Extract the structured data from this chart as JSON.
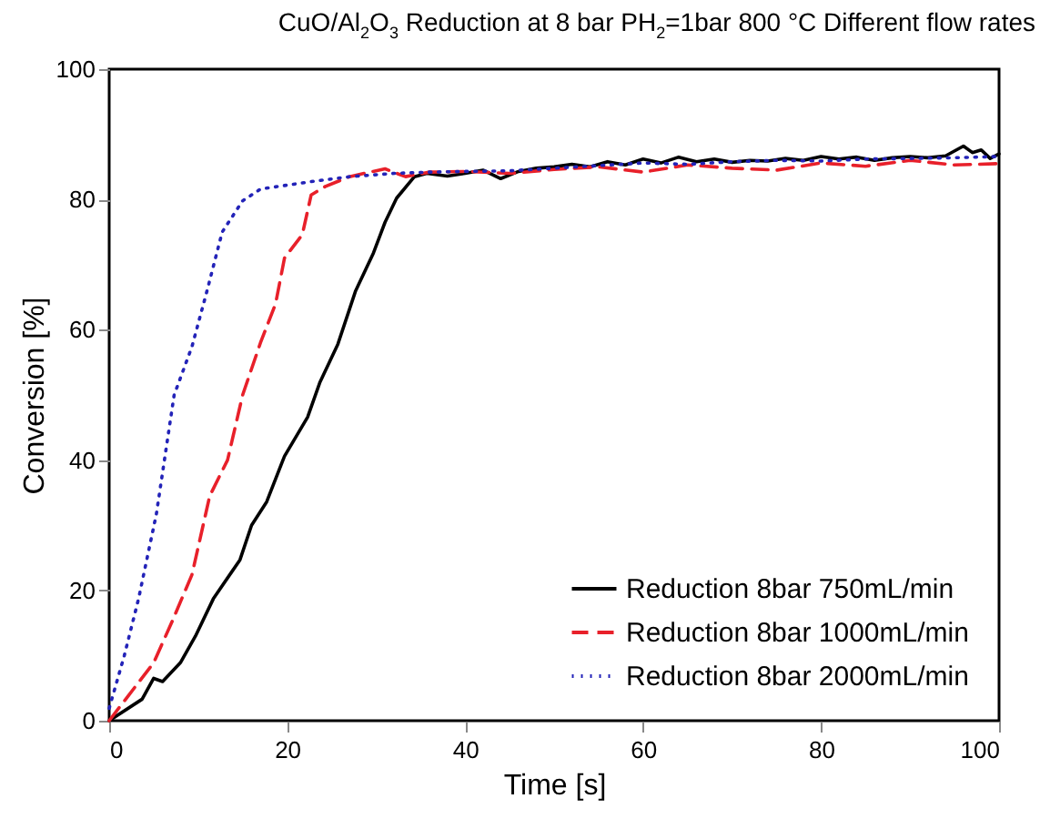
{
  "chart_data": {
    "type": "line",
    "title": "CuO/Al$_{2}$O$_{3}$ Reduction at 8 bar PH$_{2}$=1bar 800 °C Different flow rates",
    "xlabel": "Time [s]",
    "ylabel": "Conversion [%]",
    "xlim": [
      0,
      100
    ],
    "ylim": [
      0,
      100
    ],
    "xticks": [
      0,
      20,
      40,
      60,
      80,
      100
    ],
    "yticks": [
      0,
      20,
      40,
      60,
      80,
      100
    ],
    "grid": false,
    "legend": "bottom right",
    "marker": "none",
    "series": [
      {
        "name": "Reduction 8bar 750mL/min",
        "color": "#000000",
        "line_style": "solid",
        "x": [
          0,
          3.7,
          5,
          6,
          8,
          9.7,
          11.7,
          14.7,
          16,
          17.7,
          19.7,
          22.3,
          23.7,
          25.7,
          27.7,
          29.7,
          31,
          32.3,
          34.3,
          35.7,
          38,
          40,
          42,
          44,
          46,
          48,
          50,
          52,
          54,
          56,
          58,
          60,
          62,
          64,
          66,
          68,
          70,
          72,
          74,
          76,
          78,
          80,
          82,
          84,
          86,
          88,
          90,
          92,
          94,
          96,
          97,
          98,
          99,
          100
        ],
        "values": [
          0,
          3.3,
          6.5,
          6,
          8.9,
          13,
          18.7,
          24.7,
          30,
          33.6,
          40.6,
          46.6,
          52,
          57.8,
          66,
          71.8,
          76.5,
          80.2,
          83.5,
          84,
          83.6,
          84,
          84.5,
          83.2,
          84.3,
          84.8,
          85,
          85.4,
          85,
          85.8,
          85.3,
          86.2,
          85.6,
          86.5,
          85.8,
          86.2,
          85.7,
          86,
          85.9,
          86.3,
          86,
          86.6,
          86.2,
          86.5,
          86,
          86.4,
          86.6,
          86.4,
          86.7,
          88.2,
          87.2,
          87.6,
          86.3,
          87
        ]
      },
      {
        "name": "Reduction 8bar 1000mL/min",
        "color": "#e8202a",
        "line_style": "dashed",
        "x": [
          0,
          5,
          7,
          9.3,
          11.3,
          13.3,
          15,
          17,
          18.7,
          19.7,
          21.7,
          22.7,
          24.3,
          27,
          31,
          33.3,
          36,
          40,
          45,
          50,
          55,
          60,
          65,
          70,
          75,
          80,
          85,
          90,
          95,
          100
        ],
        "values": [
          0,
          8.9,
          15,
          22.4,
          34.5,
          40,
          50,
          58,
          64,
          71,
          74.6,
          80.7,
          82,
          83.5,
          84.7,
          83.5,
          84.2,
          84.3,
          84,
          84.6,
          85,
          84.2,
          85.3,
          84.8,
          84.5,
          85.6,
          85.1,
          86,
          85.3,
          85.5
        ]
      },
      {
        "name": "Reduction 8bar 2000mL/min",
        "color": "#2323b8",
        "line_style": "dotted",
        "x": [
          0,
          1.7,
          3.3,
          5.3,
          7.3,
          9.3,
          11,
          12.7,
          15,
          17,
          23,
          27,
          32,
          36,
          40,
          45,
          50,
          55,
          60,
          65,
          70,
          75,
          80,
          85,
          90,
          95,
          100
        ],
        "values": [
          1.9,
          10,
          18.7,
          31.7,
          50,
          57.4,
          66,
          75,
          79.8,
          81.6,
          82.8,
          83.5,
          84,
          84.2,
          84.3,
          84.4,
          84.8,
          85.2,
          85.6,
          85.4,
          85.8,
          86,
          85.9,
          86.2,
          86.3,
          86.4,
          86.6
        ]
      }
    ]
  }
}
